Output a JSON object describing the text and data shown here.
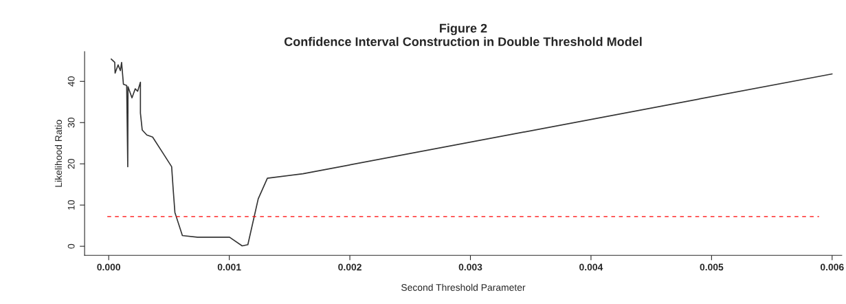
{
  "chart_data": {
    "type": "line",
    "title": "Figure 2\nConfidence Interval Construction in Double Threshold Model",
    "xlabel": "Second Threshold Parameter",
    "ylabel": "Likelihood Ratio",
    "x": [
      2.1e-05,
      5e-05,
      5.3e-05,
      7.8e-05,
      9.7e-05,
      0.000107,
      0.000122,
      0.000149,
      0.000158,
      0.00016,
      0.000193,
      0.00022,
      0.00024,
      0.000263,
      0.000263,
      0.000278,
      0.000316,
      0.000364,
      0.00045,
      0.000522,
      0.000535,
      0.000549,
      0.000611,
      0.000735,
      0.001002,
      0.001107,
      0.001154,
      0.00124,
      0.001316,
      0.001611,
      0.006
    ],
    "series": [
      {
        "color": "#333333",
        "values": [
          45.4,
          44.6,
          42.0,
          44.0,
          42.6,
          44.6,
          39.3,
          39.0,
          19.3,
          38.7,
          36.0,
          38.2,
          37.6,
          39.8,
          32.3,
          28.2,
          27.0,
          26.5,
          22.6,
          19.3,
          13.7,
          8.2,
          2.6,
          2.2,
          2.2,
          0.1,
          0.4,
          11.5,
          16.5,
          17.6,
          41.8
        ]
      }
    ],
    "xlim": [
      -0.0002,
      0.00608
    ],
    "ylim": [
      -2.2,
      47.2
    ],
    "xticks": [
      {
        "value": 0,
        "label": "0.000"
      },
      0.001,
      0.002,
      0.003,
      0.004,
      0.005,
      0.006
    ],
    "yticks": [
      0,
      10,
      20,
      30,
      40
    ],
    "ref_lines": [
      {
        "axis": "y",
        "value": 7.2,
        "color": "#ff0000",
        "line_style": "dashed"
      }
    ],
    "grid": false,
    "legend": false
  }
}
